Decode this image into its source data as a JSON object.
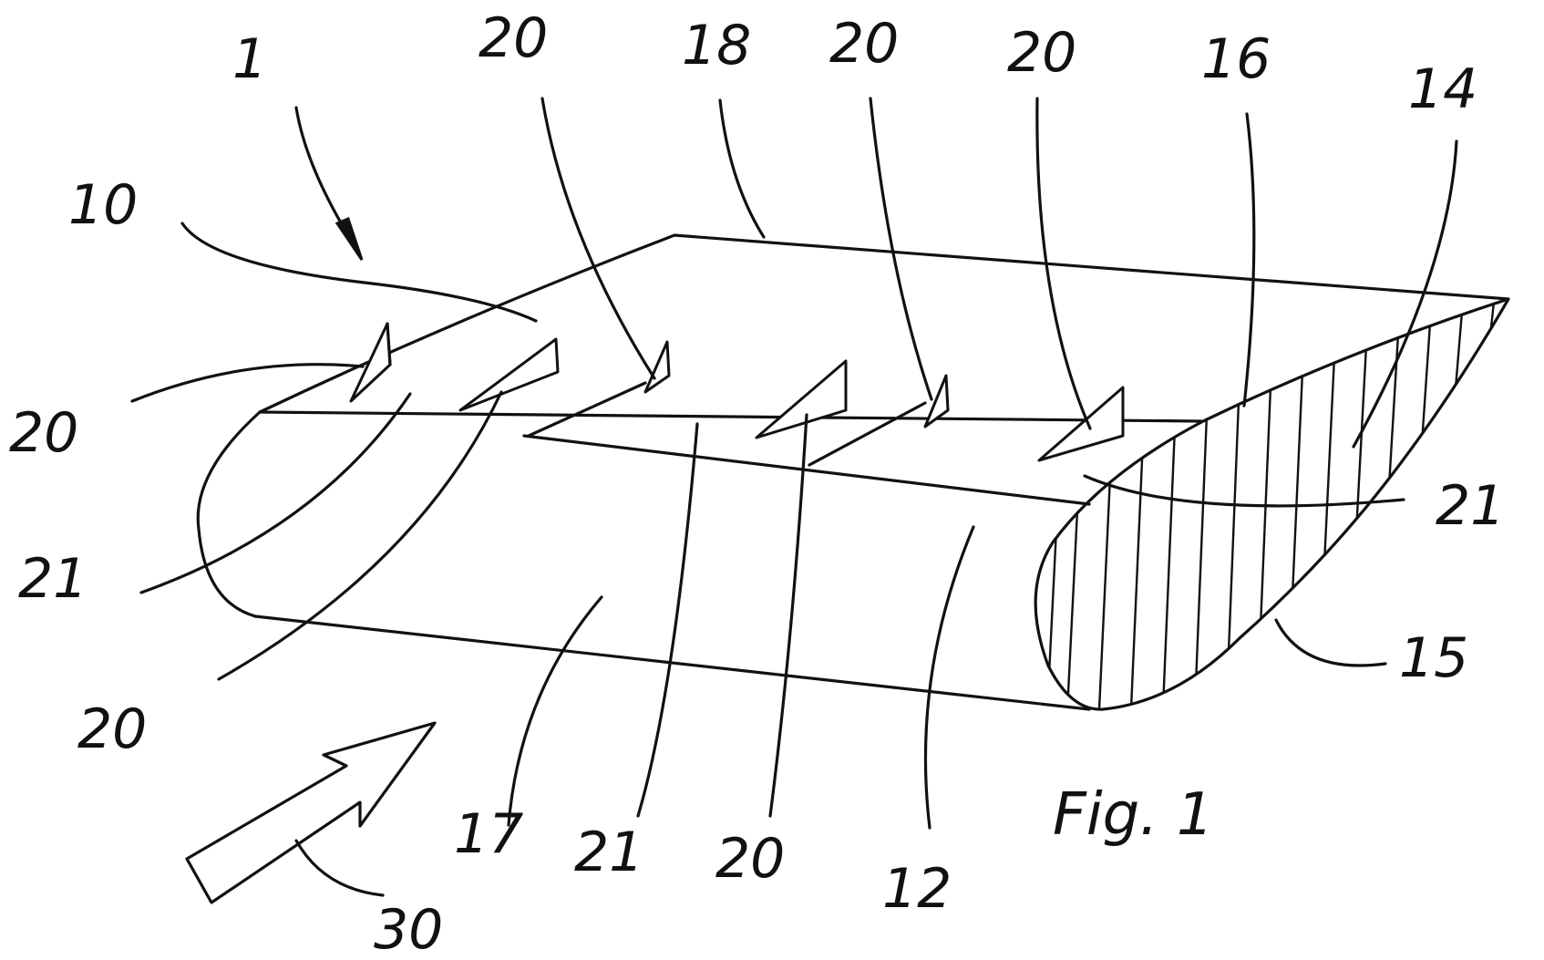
{
  "figure": {
    "caption": "Fig. 1",
    "labels": {
      "l1": "1",
      "l10": "10",
      "l12": "12",
      "l14": "14",
      "l15": "15",
      "l16": "16",
      "l17": "17",
      "l18": "18",
      "l20a": "20",
      "l20b": "20",
      "l20c": "20",
      "l20d": "20",
      "l20e": "20",
      "l20f": "20",
      "l21a": "21",
      "l21b": "21",
      "l21c": "21",
      "l30": "30"
    }
  }
}
